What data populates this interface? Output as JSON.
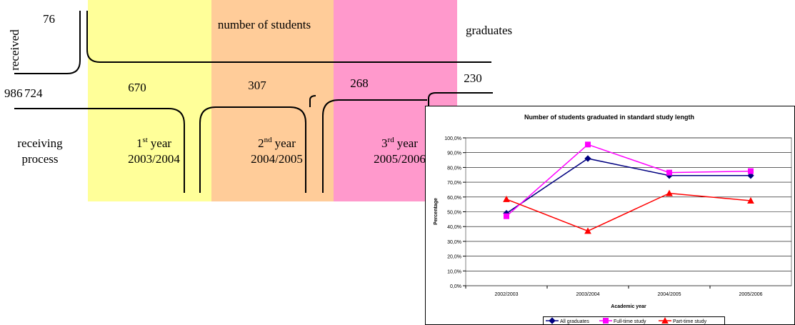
{
  "diagram": {
    "received": {
      "label": "received",
      "count": "76"
    },
    "columns_header": "number of students",
    "graduates": "graduates",
    "intake": {
      "total": "986",
      "admitted": "724"
    },
    "students": [
      "670",
      "307",
      "268"
    ],
    "graduated": "230",
    "receiving": [
      "receiving",
      "process"
    ],
    "years": [
      {
        "ordinal": "1",
        "suffix": "st",
        "word": "year",
        "period": "2003/2004",
        "color": "#ffff99"
      },
      {
        "ordinal": "2",
        "suffix": "nd",
        "word": "year",
        "period": "2004/2005",
        "color": "#ffcc99"
      },
      {
        "ordinal": "3",
        "suffix": "rd",
        "word": "year",
        "period": "2005/2006",
        "color": "#ff99cc"
      }
    ]
  },
  "chart_data": {
    "type": "line",
    "title": "Number of students graduated in standard study length",
    "x_label": "Academic year",
    "y_label": "Percentage",
    "categories": [
      "2002/2003",
      "2003/2004",
      "2004/2005",
      "2005/2006"
    ],
    "series": [
      {
        "name": "All graduates",
        "color": "#000080",
        "marker": "diamond",
        "values": [
          49,
          86,
          74.5,
          74.5
        ]
      },
      {
        "name": "Full-time study",
        "color": "#ff00ff",
        "marker": "square",
        "values": [
          47,
          95.5,
          76.5,
          77.5
        ]
      },
      {
        "name": "Part-time study",
        "color": "#ff0000",
        "marker": "triangle",
        "values": [
          58.5,
          37,
          62.5,
          57.5
        ]
      }
    ],
    "ylim": [
      0,
      100
    ],
    "yticks": [
      {
        "value": 0,
        "label": "0,0%"
      },
      {
        "value": 10,
        "label": "10,0%"
      },
      {
        "value": 20,
        "label": "20,0%"
      },
      {
        "value": 30,
        "label": "30,0%"
      },
      {
        "value": 40,
        "label": "40,0%"
      },
      {
        "value": 50,
        "label": "50,0%"
      },
      {
        "value": 60,
        "label": "60,0%"
      },
      {
        "value": 70,
        "label": "70,0%"
      },
      {
        "value": 80,
        "label": "80,0%"
      },
      {
        "value": 90,
        "label": "90,0%"
      },
      {
        "value": 100,
        "label": "100,0%"
      }
    ],
    "grid": true,
    "legend": "bottom"
  }
}
